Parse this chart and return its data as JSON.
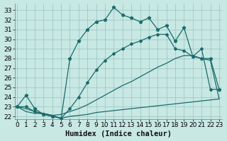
{
  "xlabel": "Humidex (Indice chaleur)",
  "xlim": [
    -0.3,
    23.3
  ],
  "ylim": [
    21.7,
    33.7
  ],
  "xticks": [
    0,
    1,
    2,
    3,
    4,
    5,
    6,
    7,
    8,
    9,
    10,
    11,
    12,
    13,
    14,
    15,
    16,
    17,
    18,
    19,
    20,
    21,
    22,
    23
  ],
  "yticks": [
    22,
    23,
    24,
    25,
    26,
    27,
    28,
    29,
    30,
    31,
    32,
    33
  ],
  "bg_color": "#c8e8e4",
  "grid_color": "#a0c8c4",
  "line_color": "#1a6b6b",
  "lw": 0.9,
  "line1_x": [
    0,
    1,
    2,
    3,
    4,
    5,
    6,
    7,
    8,
    9,
    10,
    11,
    12,
    13,
    14,
    15,
    16,
    17,
    18,
    19,
    20,
    21,
    22,
    23
  ],
  "line1_y": [
    23.0,
    24.2,
    22.8,
    22.2,
    22.0,
    21.8,
    28.0,
    29.8,
    31.0,
    31.8,
    32.0,
    33.3,
    32.5,
    32.2,
    31.8,
    32.2,
    31.0,
    31.4,
    29.8,
    31.2,
    28.2,
    28.0,
    28.0,
    24.8
  ],
  "line2_x": [
    0,
    1,
    2,
    3,
    4,
    5,
    6,
    7,
    8,
    9,
    10,
    11,
    12,
    13,
    14,
    15,
    16,
    17,
    18,
    19,
    20,
    21,
    22,
    23
  ],
  "line2_y": [
    23.0,
    23.0,
    22.5,
    22.2,
    22.0,
    21.8,
    22.8,
    24.0,
    25.5,
    26.8,
    27.8,
    28.5,
    29.0,
    29.5,
    29.8,
    30.2,
    30.5,
    30.5,
    29.0,
    28.8,
    28.2,
    29.0,
    24.8,
    24.8
  ],
  "line3_x": [
    0,
    1,
    2,
    3,
    4,
    5,
    6,
    7,
    8,
    9,
    10,
    11,
    12,
    13,
    14,
    15,
    16,
    17,
    18,
    19,
    20,
    21,
    22,
    23
  ],
  "line3_y": [
    23.0,
    22.8,
    22.5,
    22.3,
    22.1,
    22.2,
    22.5,
    22.8,
    23.2,
    23.7,
    24.2,
    24.7,
    25.2,
    25.6,
    26.1,
    26.6,
    27.1,
    27.5,
    28.0,
    28.3,
    28.3,
    28.0,
    27.8,
    23.8
  ],
  "line4_x": [
    0,
    1,
    2,
    3,
    4,
    5,
    6,
    7,
    8,
    9,
    10,
    11,
    12,
    13,
    14,
    15,
    16,
    17,
    18,
    19,
    20,
    21,
    22,
    23
  ],
  "line4_y": [
    23.0,
    22.5,
    22.3,
    22.3,
    22.1,
    21.8,
    22.0,
    22.1,
    22.2,
    22.4,
    22.5,
    22.6,
    22.7,
    22.8,
    22.9,
    23.0,
    23.1,
    23.2,
    23.3,
    23.4,
    23.5,
    23.6,
    23.7,
    23.8
  ],
  "fontsize_xlabel": 7.5,
  "fontsize_ticks": 6.5
}
